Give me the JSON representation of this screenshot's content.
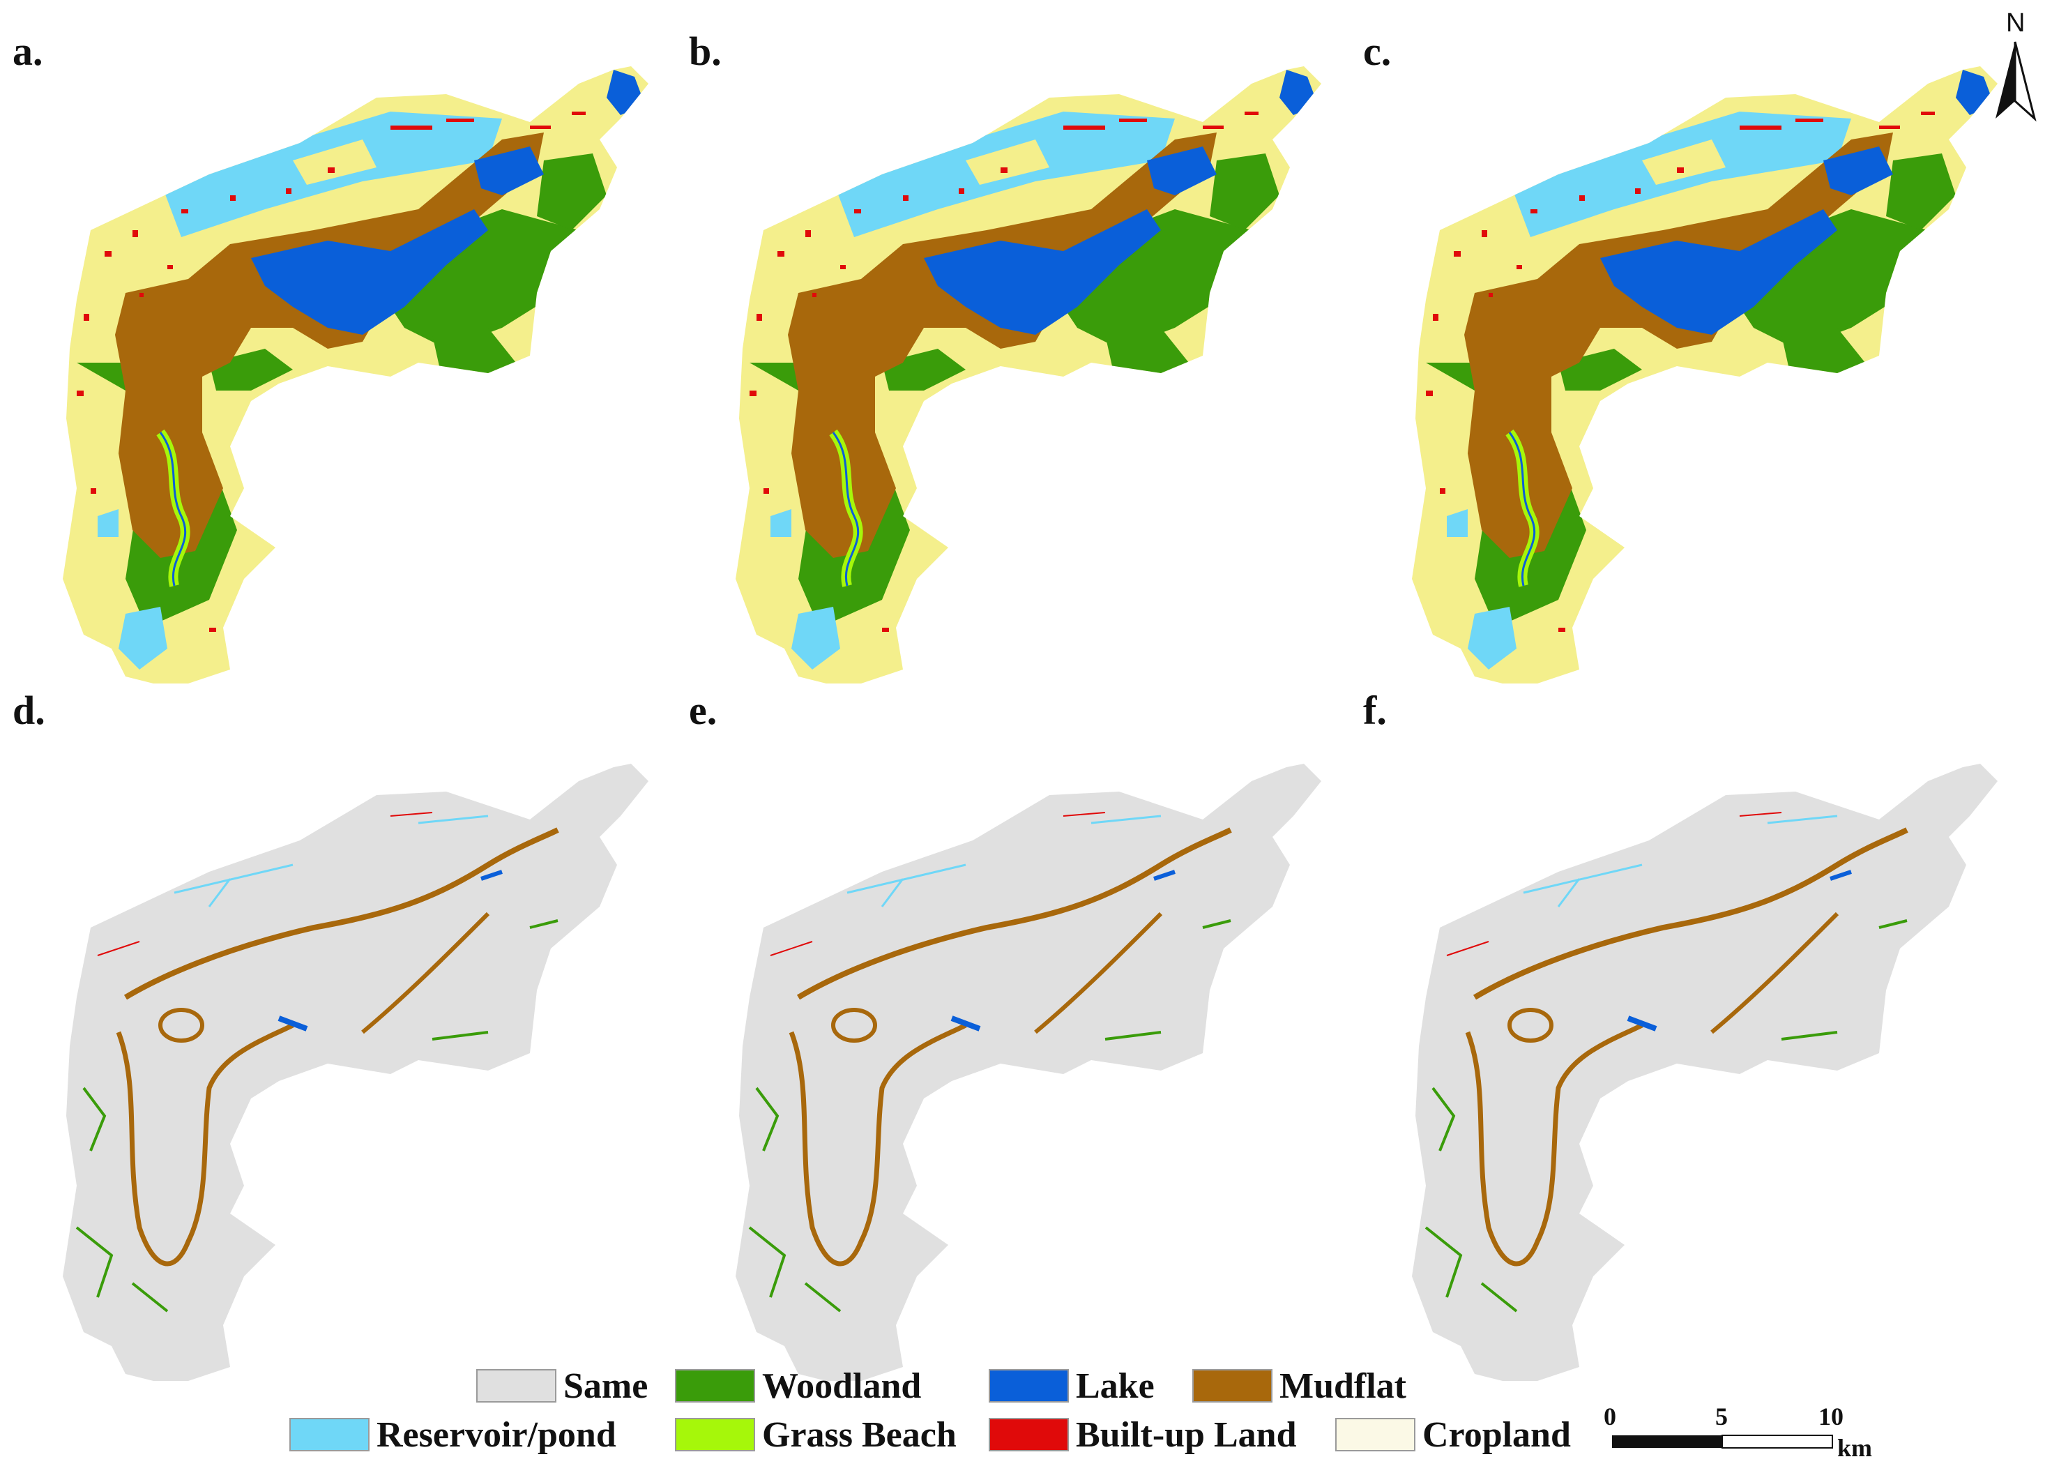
{
  "panels": [
    {
      "label": "a.",
      "kind": "landuse"
    },
    {
      "label": "b.",
      "kind": "landuse"
    },
    {
      "label": "c.",
      "kind": "landuse"
    },
    {
      "label": "d.",
      "kind": "change"
    },
    {
      "label": "e.",
      "kind": "change"
    },
    {
      "label": "f.",
      "kind": "change"
    }
  ],
  "legend": [
    {
      "name": "Same",
      "color": "#e0e0e0"
    },
    {
      "name": "Woodland",
      "color": "#3a9c0a"
    },
    {
      "name": "Lake",
      "color": "#0a5fd9"
    },
    {
      "name": "Mudflat",
      "color": "#a8680c"
    },
    {
      "name": "Reservoir/pond",
      "color": "#6fd7f7"
    },
    {
      "name": "Grass Beach",
      "color": "#a6f70a"
    },
    {
      "name": "Built-up Land",
      "color": "#e00a0a"
    },
    {
      "name": "Cropland",
      "color": "#fbf9e6"
    }
  ],
  "colors": {
    "cropland_map": "#f4ef8c",
    "same": "#e0e0e0"
  },
  "scale_bar": {
    "ticks": [
      "0",
      "5",
      "10"
    ],
    "unit": "km"
  },
  "north_arrow": {
    "label": "N"
  }
}
